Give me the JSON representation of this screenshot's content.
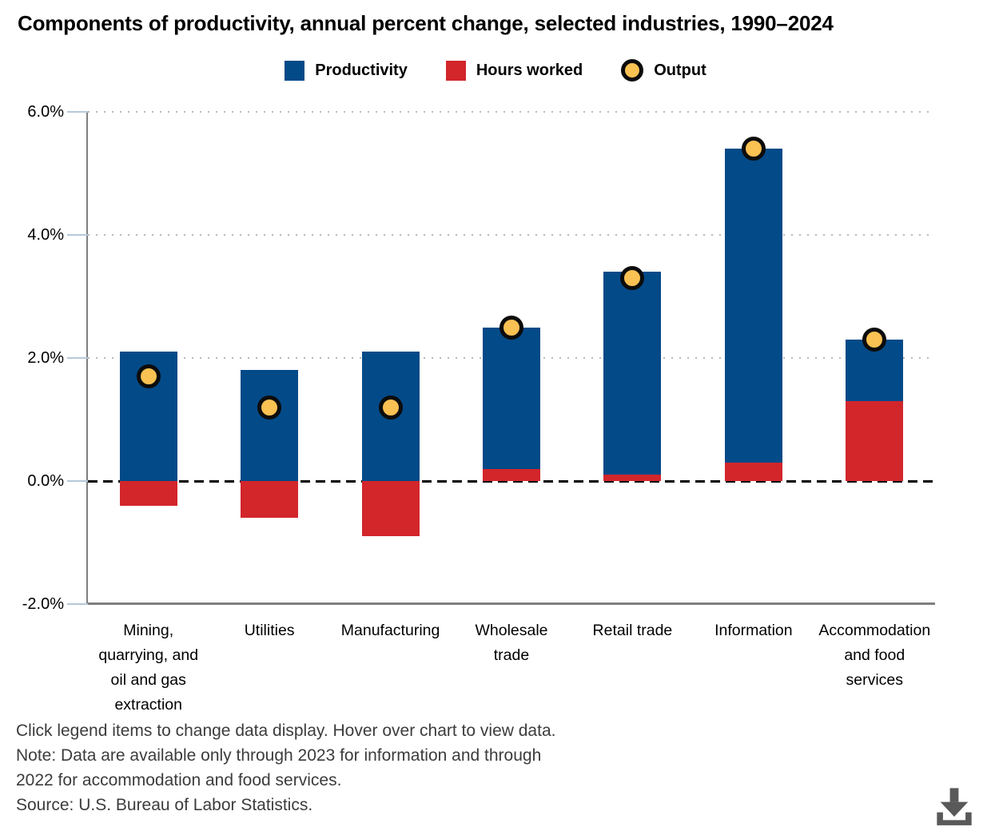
{
  "title": "Components of productivity, annual percent change, selected industries, 1990–2024",
  "legend": {
    "items": [
      {
        "label": "Productivity",
        "swatch": "square",
        "color": "#034a88"
      },
      {
        "label": "Hours worked",
        "swatch": "square",
        "color": "#d2262b"
      },
      {
        "label": "Output",
        "swatch": "circle",
        "color": "#fac153"
      }
    ]
  },
  "chart_data": {
    "type": "bar",
    "subtype": "stacked-bars-with-point-markers",
    "title": "Components of productivity, annual percent change, selected industries, 1990–2024",
    "categories": [
      "Mining, quarrying, and oil and gas extraction",
      "Utilities",
      "Manufacturing",
      "Wholesale trade",
      "Retail trade",
      "Information",
      "Accommodation and food services"
    ],
    "category_label_lines": [
      [
        "Mining,",
        "quarrying, and",
        "oil and gas",
        "extraction"
      ],
      [
        "Utilities"
      ],
      [
        "Manufacturing"
      ],
      [
        "Wholesale",
        "trade"
      ],
      [
        "Retail trade"
      ],
      [
        "Information"
      ],
      [
        "Accommodation",
        "and food",
        "services"
      ]
    ],
    "series": [
      {
        "name": "Productivity",
        "render": "stacked-bar",
        "color": "#034a88",
        "values": [
          2.1,
          1.8,
          2.1,
          2.3,
          3.3,
          5.1,
          1.0
        ]
      },
      {
        "name": "Hours worked",
        "render": "stacked-bar",
        "color": "#d2262b",
        "values": [
          -0.4,
          -0.6,
          -0.9,
          0.2,
          0.1,
          0.3,
          1.3
        ]
      },
      {
        "name": "Output",
        "render": "point-marker",
        "color": "#fac153",
        "values": [
          1.7,
          1.2,
          1.2,
          2.5,
          3.3,
          5.4,
          2.3
        ]
      }
    ],
    "xlabel": "",
    "ylabel": "",
    "ylim": [
      -2,
      6
    ],
    "yticks": [
      {
        "value": 6,
        "label": "6.0%"
      },
      {
        "value": 4,
        "label": "4.0%"
      },
      {
        "value": 2,
        "label": "2.0%"
      },
      {
        "value": 0,
        "label": "0.0%"
      },
      {
        "value": -2,
        "label": "-2.0%"
      }
    ],
    "grid": "horizontal dotted at 2.0, 4.0, 6.0",
    "zero_line": "black dashed",
    "legend_position": "top"
  },
  "footer": {
    "lines": [
      "Click legend items to change data display. Hover over chart to view data.",
      "Note: Data are available only through 2023 for information and through",
      "2022 for accommodation and food services.",
      "Source: U.S. Bureau of Labor Statistics."
    ]
  },
  "icons": {
    "download": "download-icon",
    "download_color": "#595959"
  }
}
